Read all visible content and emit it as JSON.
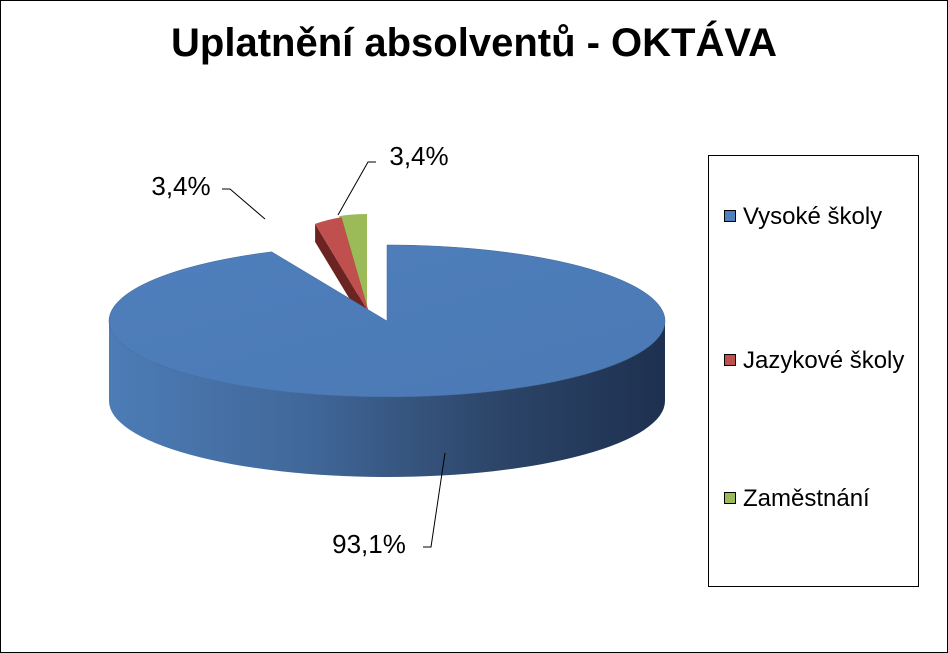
{
  "chart_data": {
    "type": "pie",
    "title": "Uplatnění absolventů - OKTÁVA",
    "style": "3D pie, exploded slices",
    "slices": [
      {
        "name": "Vysoké školy",
        "value": 93.1,
        "label": "93,1%",
        "color": "#4F81BD"
      },
      {
        "name": "Jazykové školy",
        "value": 3.4,
        "label": "3,4%",
        "color": "#C0504D"
      },
      {
        "name": "Zaměstnání",
        "value": 3.4,
        "label": "3,4%",
        "color": "#9BBB59"
      }
    ],
    "legend_position": "right"
  }
}
